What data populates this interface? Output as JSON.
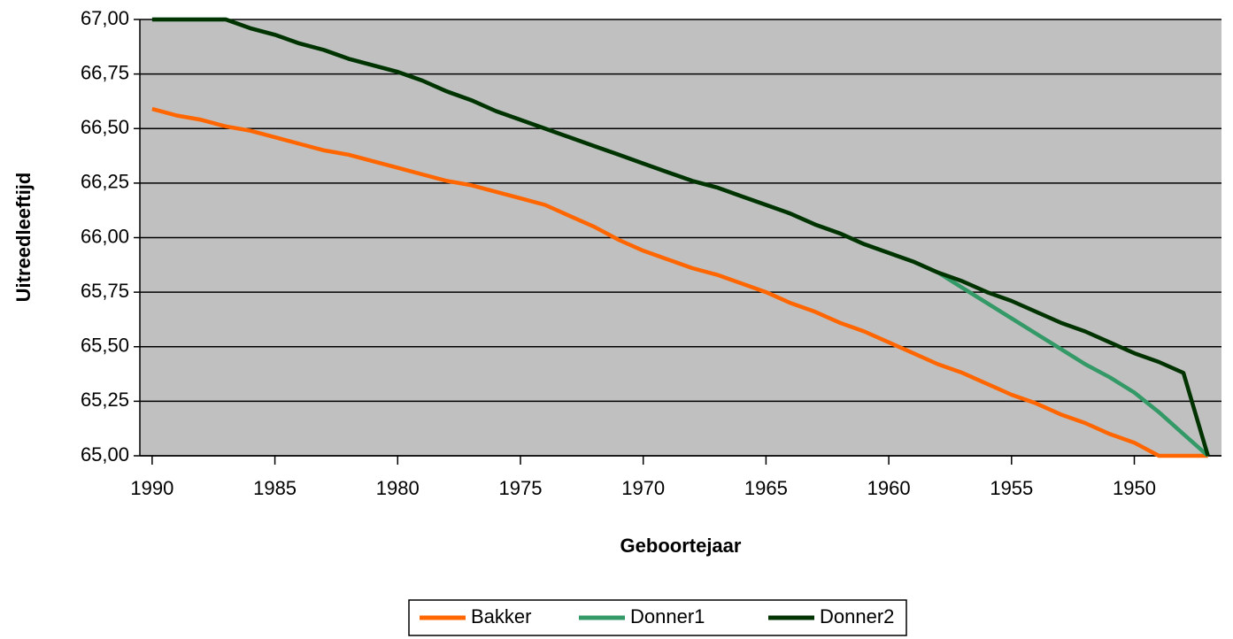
{
  "chart_data": {
    "type": "line",
    "x_label": "Geboortejaar",
    "y_label": "Uitreedleeftijd",
    "x": [
      1990,
      1989,
      1988,
      1987,
      1986,
      1985,
      1984,
      1983,
      1982,
      1981,
      1980,
      1979,
      1978,
      1977,
      1976,
      1975,
      1974,
      1973,
      1972,
      1971,
      1970,
      1969,
      1968,
      1967,
      1966,
      1965,
      1964,
      1963,
      1962,
      1961,
      1960,
      1959,
      1958,
      1957,
      1956,
      1955,
      1954,
      1953,
      1952,
      1951,
      1950,
      1949,
      1948,
      1947
    ],
    "series": [
      {
        "name": "Bakker",
        "color": "#ff6600",
        "values": [
          66.59,
          66.56,
          66.54,
          66.51,
          66.49,
          66.46,
          66.43,
          66.4,
          66.38,
          66.35,
          66.32,
          66.29,
          66.26,
          66.24,
          66.21,
          66.18,
          66.15,
          66.1,
          66.05,
          65.99,
          65.94,
          65.9,
          65.86,
          65.83,
          65.79,
          65.75,
          65.7,
          65.66,
          65.61,
          65.57,
          65.52,
          65.47,
          65.42,
          65.38,
          65.33,
          65.28,
          65.24,
          65.19,
          65.15,
          65.1,
          65.06,
          65.0,
          65.0,
          65.0
        ]
      },
      {
        "name": "Donner1",
        "color": "#339966",
        "values": [
          67.0,
          67.0,
          67.0,
          67.0,
          66.96,
          66.93,
          66.89,
          66.86,
          66.82,
          66.79,
          66.76,
          66.72,
          66.67,
          66.63,
          66.58,
          66.54,
          66.5,
          66.46,
          66.42,
          66.38,
          66.34,
          66.3,
          66.26,
          66.23,
          66.19,
          66.15,
          66.11,
          66.06,
          66.02,
          65.97,
          65.93,
          65.89,
          65.84,
          65.77,
          65.7,
          65.63,
          65.56,
          65.49,
          65.42,
          65.36,
          65.29,
          65.2,
          65.1,
          65.0
        ]
      },
      {
        "name": "Donner2",
        "color": "#003300",
        "values": [
          67.0,
          67.0,
          67.0,
          67.0,
          66.96,
          66.93,
          66.89,
          66.86,
          66.82,
          66.79,
          66.76,
          66.72,
          66.67,
          66.63,
          66.58,
          66.54,
          66.5,
          66.46,
          66.42,
          66.38,
          66.34,
          66.3,
          66.26,
          66.23,
          66.19,
          66.15,
          66.11,
          66.06,
          66.02,
          65.97,
          65.93,
          65.89,
          65.84,
          65.8,
          65.75,
          65.71,
          65.66,
          65.61,
          65.57,
          65.52,
          65.47,
          65.43,
          65.38,
          65.0
        ]
      }
    ],
    "xlim": [
      1990.5,
      1946.45
    ],
    "xticks": [
      1990,
      1985,
      1980,
      1975,
      1970,
      1965,
      1960,
      1955,
      1950
    ],
    "ylim": [
      65,
      67
    ],
    "yticks": [
      {
        "value": 65,
        "label": "65,00"
      },
      {
        "value": 65.25,
        "label": "65,25"
      },
      {
        "value": 65.5,
        "label": "65,50"
      },
      {
        "value": 65.75,
        "label": "65,75"
      },
      {
        "value": 66,
        "label": "66,00"
      },
      {
        "value": 66.25,
        "label": "66,25"
      },
      {
        "value": 66.5,
        "label": "66,50"
      },
      {
        "value": 66.75,
        "label": "66,75"
      },
      {
        "value": 67,
        "label": "67,00"
      }
    ],
    "grid": true,
    "legend": "bottom"
  }
}
